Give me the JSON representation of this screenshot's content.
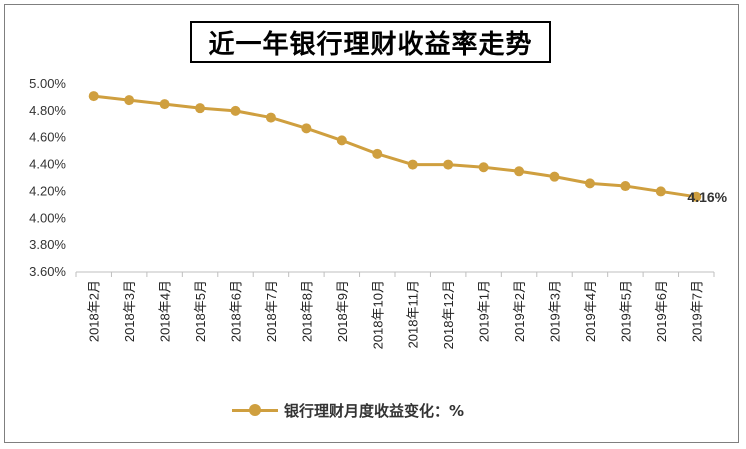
{
  "chart_data": {
    "type": "line",
    "title": "近一年银行理财收益率走势",
    "categories": [
      "2018年2月",
      "2018年3月",
      "2018年4月",
      "2018年5月",
      "2018年6月",
      "2018年7月",
      "2018年8月",
      "2018年9月",
      "2018年10月",
      "2018年11月",
      "2018年12月",
      "2019年1月",
      "2019年2月",
      "2019年3月",
      "2019年4月",
      "2019年5月",
      "2019年6月",
      "2019年7月"
    ],
    "series": [
      {
        "name": "银行理财月度收益变化：%",
        "values": [
          4.91,
          4.88,
          4.85,
          4.82,
          4.8,
          4.75,
          4.67,
          4.58,
          4.48,
          4.4,
          4.4,
          4.38,
          4.35,
          4.31,
          4.26,
          4.24,
          4.2,
          4.16
        ],
        "color": "#cf9f3f"
      }
    ],
    "data_labels": [
      {
        "index": 17,
        "text": "4.16%"
      }
    ],
    "yticks": [
      "3.60%",
      "3.80%",
      "4.00%",
      "4.20%",
      "4.40%",
      "4.60%",
      "4.80%",
      "5.00%"
    ],
    "ylim": [
      3.6,
      5.0
    ],
    "grid": false,
    "legend_position": "bottom"
  },
  "legend": {
    "label": "银行理财月度收益变化：%"
  }
}
